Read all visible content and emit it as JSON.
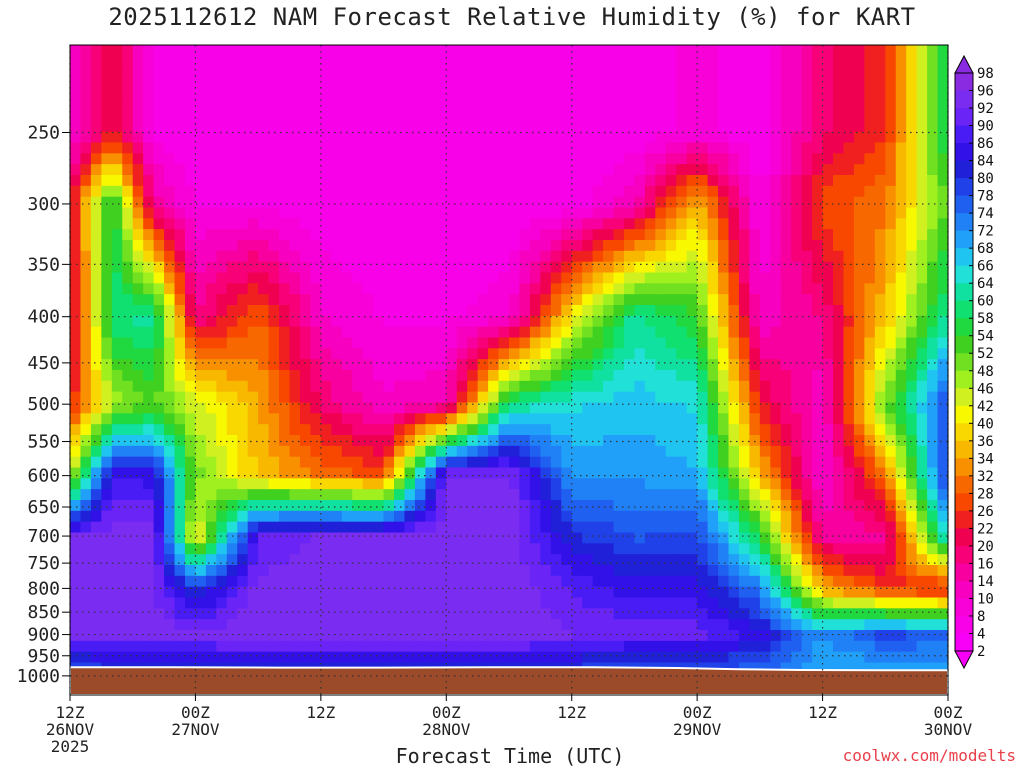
{
  "chart_data": {
    "type": "heatmap",
    "title": "2025112612 NAM Forecast Relative Humidity (%) for KART",
    "xlabel": "Forecast Time (UTC)",
    "ylabel": "",
    "credit": "coolwx.com/modelts",
    "x_unit": "hours after 2025-11-26 12Z",
    "xlim": [
      0,
      84
    ],
    "x_ticks": [
      {
        "hour": 0,
        "line1": "12Z",
        "line2": "26NOV",
        "line3": "2025"
      },
      {
        "hour": 12,
        "line1": "00Z",
        "line2": "27NOV",
        "line3": ""
      },
      {
        "hour": 24,
        "line1": "12Z",
        "line2": "",
        "line3": ""
      },
      {
        "hour": 36,
        "line1": "00Z",
        "line2": "28NOV",
        "line3": ""
      },
      {
        "hour": 48,
        "line1": "12Z",
        "line2": "",
        "line3": ""
      },
      {
        "hour": 60,
        "line1": "00Z",
        "line2": "29NOV",
        "line3": ""
      },
      {
        "hour": 72,
        "line1": "12Z",
        "line2": "",
        "line3": ""
      },
      {
        "hour": 84,
        "line1": "00Z",
        "line2": "30NOV",
        "line3": ""
      }
    ],
    "y_unit": "hPa",
    "ylim": [
      1050,
      200
    ],
    "y_ticks": [
      250,
      300,
      350,
      400,
      450,
      500,
      550,
      600,
      650,
      700,
      750,
      800,
      850,
      900,
      950,
      1000
    ],
    "surface_pressure_hPa": [
      [
        0,
        978
      ],
      [
        10,
        978
      ],
      [
        20,
        979
      ],
      [
        30,
        979
      ],
      [
        40,
        978
      ],
      [
        50,
        978
      ],
      [
        58,
        980
      ],
      [
        64,
        983
      ],
      [
        70,
        985
      ],
      [
        78,
        986
      ],
      [
        84,
        986
      ]
    ],
    "colorbar": {
      "labels": [
        98,
        96,
        92,
        90,
        86,
        84,
        80,
        78,
        74,
        72,
        68,
        66,
        64,
        60,
        58,
        54,
        52,
        48,
        46,
        42,
        40,
        36,
        34,
        32,
        28,
        26,
        22,
        20,
        16,
        14,
        10,
        8,
        4,
        2
      ]
    },
    "rh_profile_samples": [
      {
        "hour": 0,
        "pressure": [
          250,
          300,
          400,
          500,
          600,
          700,
          800,
          900,
          970
        ],
        "rh": [
          8,
          20,
          16,
          22,
          44,
          94,
          94,
          96,
          80
        ]
      },
      {
        "hour": 4,
        "pressure": [
          250,
          300,
          400,
          500,
          600,
          700,
          800,
          900,
          970
        ],
        "rh": [
          22,
          58,
          60,
          46,
          88,
          95,
          94,
          96,
          82
        ]
      },
      {
        "hour": 8,
        "pressure": [
          250,
          300,
          400,
          500,
          600,
          700,
          800,
          900,
          970
        ],
        "rh": [
          6,
          14,
          62,
          52,
          86,
          95,
          94,
          96,
          82
        ]
      },
      {
        "hour": 12,
        "pressure": [
          250,
          300,
          400,
          500,
          600,
          700,
          800,
          900,
          970
        ],
        "rh": [
          4,
          6,
          16,
          44,
          50,
          40,
          80,
          94,
          84
        ]
      },
      {
        "hour": 18,
        "pressure": [
          250,
          300,
          400,
          500,
          600,
          700,
          800,
          900,
          970
        ],
        "rh": [
          4,
          6,
          28,
          34,
          36,
          90,
          95,
          96,
          84
        ]
      },
      {
        "hour": 24,
        "pressure": [
          250,
          300,
          400,
          500,
          600,
          700,
          800,
          900,
          970
        ],
        "rh": [
          4,
          4,
          10,
          18,
          30,
          94,
          96,
          96,
          84
        ]
      },
      {
        "hour": 30,
        "pressure": [
          250,
          300,
          400,
          500,
          600,
          700,
          800,
          900,
          970
        ],
        "rh": [
          4,
          4,
          6,
          10,
          26,
          94,
          96,
          96,
          84
        ]
      },
      {
        "hour": 36,
        "pressure": [
          250,
          300,
          400,
          500,
          600,
          700,
          800,
          900,
          970
        ],
        "rh": [
          4,
          4,
          6,
          12,
          94,
          96,
          96,
          96,
          84
        ]
      },
      {
        "hour": 42,
        "pressure": [
          250,
          300,
          400,
          500,
          600,
          700,
          800,
          900,
          970
        ],
        "rh": [
          4,
          4,
          8,
          60,
          95,
          96,
          96,
          96,
          84
        ]
      },
      {
        "hour": 48,
        "pressure": [
          250,
          300,
          400,
          500,
          600,
          700,
          800,
          900,
          970
        ],
        "rh": [
          4,
          4,
          40,
          66,
          72,
          82,
          90,
          94,
          82
        ]
      },
      {
        "hour": 54,
        "pressure": [
          250,
          300,
          400,
          500,
          600,
          700,
          800,
          900,
          970
        ],
        "rh": [
          4,
          12,
          62,
          68,
          72,
          78,
          86,
          92,
          80
        ]
      },
      {
        "hour": 60,
        "pressure": [
          250,
          300,
          400,
          500,
          600,
          700,
          800,
          900,
          970
        ],
        "rh": [
          8,
          36,
          54,
          66,
          70,
          80,
          86,
          92,
          80
        ]
      },
      {
        "hour": 66,
        "pressure": [
          250,
          300,
          400,
          500,
          600,
          700,
          800,
          900,
          970
        ],
        "rh": [
          4,
          6,
          10,
          22,
          36,
          56,
          74,
          86,
          78
        ]
      },
      {
        "hour": 72,
        "pressure": [
          250,
          300,
          400,
          500,
          600,
          700,
          800,
          900,
          970
        ],
        "rh": [
          18,
          26,
          16,
          10,
          8,
          14,
          34,
          72,
          70
        ]
      },
      {
        "hour": 78,
        "pressure": [
          250,
          300,
          400,
          500,
          600,
          700,
          800,
          900,
          970
        ],
        "rh": [
          24,
          30,
          36,
          50,
          30,
          14,
          24,
          80,
          72
        ]
      },
      {
        "hour": 84,
        "pressure": [
          250,
          300,
          400,
          500,
          600,
          700,
          800,
          900,
          970
        ],
        "rh": [
          60,
          52,
          62,
          80,
          82,
          68,
          22,
          76,
          72
        ]
      }
    ]
  }
}
